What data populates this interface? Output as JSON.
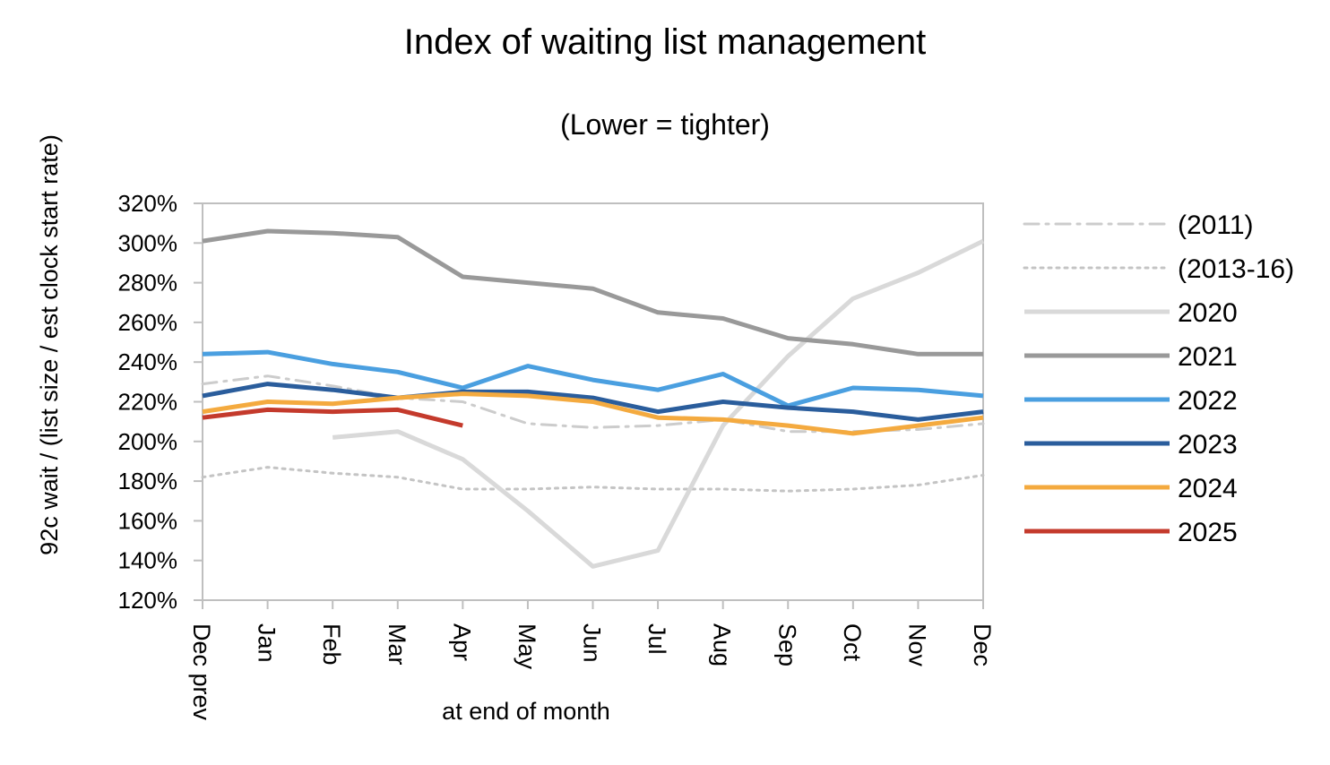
{
  "chart_data": {
    "type": "line",
    "title": "Index of waiting list management",
    "subtitle": "(Lower = tighter)",
    "xlabel": "at end of month",
    "ylabel": "92c wait / (list size / est clock start rate)",
    "categories": [
      "Dec prev",
      "Jan",
      "Feb",
      "Mar",
      "Apr",
      "May",
      "Jun",
      "Jul",
      "Aug",
      "Sep",
      "Oct",
      "Nov",
      "Dec"
    ],
    "ylim": [
      120,
      320
    ],
    "ytick_labels": [
      "120%",
      "140%",
      "160%",
      "180%",
      "200%",
      "220%",
      "240%",
      "260%",
      "280%",
      "300%",
      "320%"
    ],
    "legend_position": "right",
    "grid": false,
    "series": [
      {
        "name": "(2011)",
        "color": "#cccccc",
        "style": "dashdot",
        "values": [
          229,
          233,
          228,
          222,
          220,
          209,
          207,
          208,
          211,
          205,
          205,
          206,
          209
        ]
      },
      {
        "name": "(2013-16)",
        "color": "#c4c4c4",
        "style": "dotted",
        "values": [
          182,
          187,
          184,
          182,
          176,
          176,
          177,
          176,
          176,
          175,
          176,
          178,
          183
        ]
      },
      {
        "name": "2020",
        "color": "#d9d9d9",
        "style": "solid",
        "values": [
          null,
          null,
          202,
          205,
          191,
          165,
          137,
          145,
          208,
          243,
          272,
          285,
          301
        ]
      },
      {
        "name": "2021",
        "color": "#999999",
        "style": "solid",
        "values": [
          301,
          306,
          305,
          303,
          283,
          280,
          277,
          265,
          262,
          252,
          249,
          244,
          244
        ]
      },
      {
        "name": "2022",
        "color": "#4a9fe0",
        "style": "solid",
        "values": [
          244,
          245,
          239,
          235,
          227,
          238,
          231,
          226,
          234,
          218,
          227,
          226,
          223
        ]
      },
      {
        "name": "2023",
        "color": "#2a5d9c",
        "style": "solid",
        "values": [
          223,
          229,
          226,
          222,
          225,
          225,
          222,
          215,
          220,
          217,
          215,
          211,
          215
        ]
      },
      {
        "name": "2024",
        "color": "#f4aa3f",
        "style": "solid",
        "values": [
          215,
          220,
          219,
          222,
          224,
          223,
          220,
          212,
          211,
          208,
          204,
          208,
          212
        ]
      },
      {
        "name": "2025",
        "color": "#c43a2c",
        "style": "solid",
        "values": [
          212,
          216,
          215,
          216,
          208,
          null,
          null,
          null,
          null,
          null,
          null,
          null,
          null
        ]
      }
    ]
  }
}
